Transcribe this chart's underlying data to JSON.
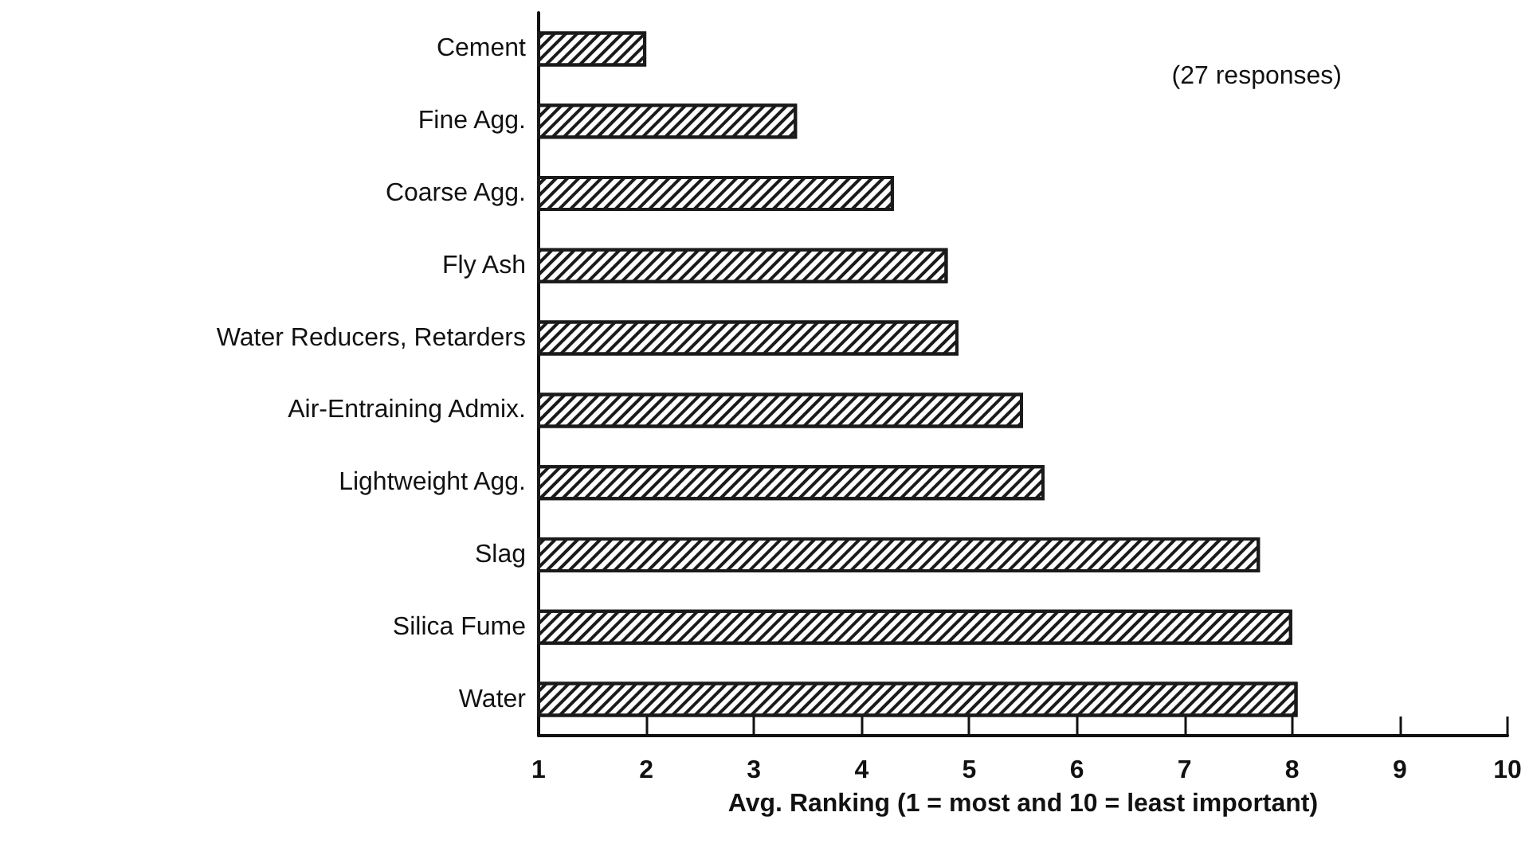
{
  "chart_data": {
    "type": "bar",
    "orientation": "horizontal",
    "categories": [
      "Cement",
      "Fine Agg.",
      "Coarse Agg.",
      "Fly Ash",
      "Water Reducers, Retarders",
      "Air-Entraining Admix.",
      "Lightweight Agg.",
      "Slag",
      "Silica Fume",
      "Water"
    ],
    "values": [
      2.0,
      3.4,
      4.3,
      4.8,
      4.9,
      5.5,
      5.7,
      7.7,
      8.0,
      8.05
    ],
    "color": "#1a1a1a",
    "xlim": [
      1,
      10
    ],
    "xticks": [
      1,
      2,
      3,
      4,
      5,
      6,
      7,
      8,
      9,
      10
    ],
    "xlabel": "Avg. Ranking (1 = most and 10 = least important)",
    "annotations": [
      "(27 responses)"
    ]
  }
}
